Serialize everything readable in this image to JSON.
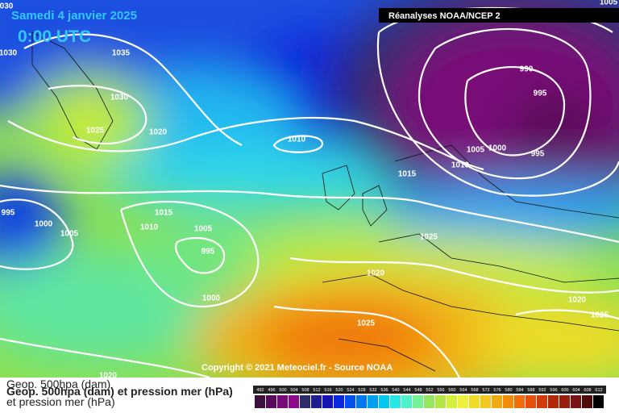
{
  "header": {
    "title": "Samedi 4 janvier 2025",
    "time": "0:00 UTC",
    "source": "Réanalyses NOAA/NCEP 2"
  },
  "isobar_labels": [
    "030",
    "1005",
    "1030",
    "1035",
    "1030",
    "1025",
    "1020",
    "1010",
    "990",
    "995",
    "1005",
    "1000",
    "995",
    "1010",
    "1015",
    "995",
    "1000",
    "1005",
    "1015",
    "1010",
    "1005",
    "995",
    "1025",
    "1020",
    "1000",
    "1020",
    "1025",
    "1025",
    "1020"
  ],
  "footer": {
    "copyright": "Copyright © 2021 Meteociel.fr - Source NOAA",
    "legend_title_lines": [
      "Geop. 500hpa (dam)",
      "et pression mer (hPa)"
    ],
    "legend_title_overlay": "Geop. 500hpa (dam) et pression mer (hPa)"
  },
  "scale": {
    "labels": [
      492,
      496,
      500,
      504,
      508,
      512,
      516,
      520,
      524,
      528,
      532,
      536,
      540,
      544,
      548,
      552,
      556,
      560,
      564,
      568,
      572,
      576,
      580,
      584,
      588,
      592,
      596,
      600,
      604,
      608,
      612
    ],
    "colors": [
      "#3c0f3c",
      "#5a0a5a",
      "#780a78",
      "#8c0a8c",
      "#2d2d6e",
      "#1e1e8c",
      "#1414b4",
      "#0a28dc",
      "#0050f0",
      "#0078f0",
      "#00a0f0",
      "#00c8f0",
      "#28e6e6",
      "#50f0c8",
      "#78f096",
      "#96e664",
      "#b4e646",
      "#d2f03c",
      "#f0f03c",
      "#f0dc28",
      "#f0c81e",
      "#f0aa14",
      "#f08c0a",
      "#f06e0a",
      "#e6500a",
      "#d23c0a",
      "#b4280a",
      "#961e0a",
      "#781414",
      "#500a0a",
      "#000000"
    ]
  }
}
